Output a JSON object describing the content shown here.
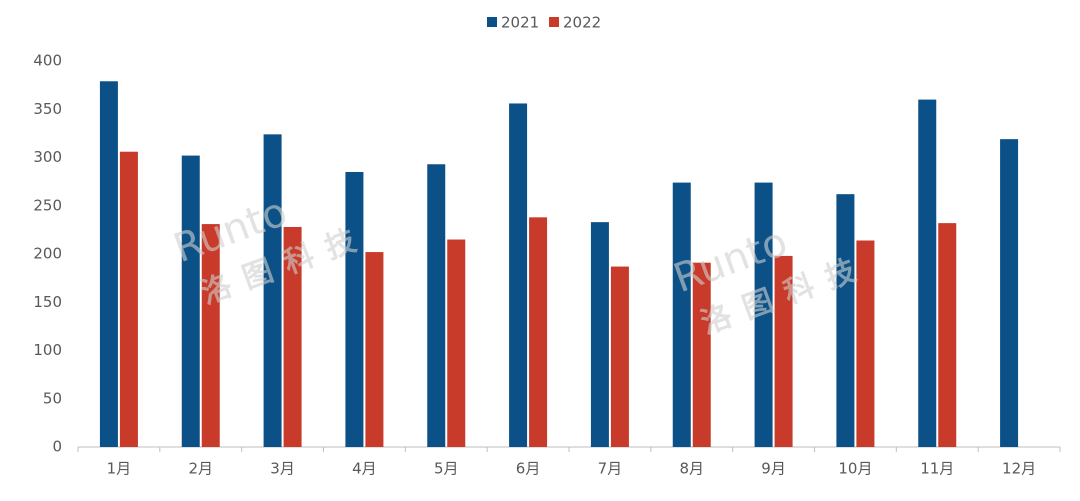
{
  "chart_data": {
    "type": "bar",
    "categories": [
      "1月",
      "2月",
      "3月",
      "4月",
      "5月",
      "6月",
      "7月",
      "8月",
      "9月",
      "10月",
      "11月",
      "12月"
    ],
    "series": [
      {
        "name": "2021",
        "color": "#0b5187",
        "values": [
          379,
          302,
          324,
          285,
          293,
          356,
          233,
          274,
          274,
          262,
          360,
          319
        ]
      },
      {
        "name": "2022",
        "color": "#c83a2a",
        "values": [
          306,
          231,
          228,
          202,
          215,
          238,
          187,
          191,
          198,
          214,
          232,
          null
        ]
      }
    ],
    "ylim": [
      0,
      400
    ],
    "yticks": [
      0,
      50,
      100,
      150,
      200,
      250,
      300,
      350,
      400
    ],
    "grid": false,
    "legend": "top",
    "watermarks": [
      "Runto",
      "洛图科技"
    ]
  }
}
